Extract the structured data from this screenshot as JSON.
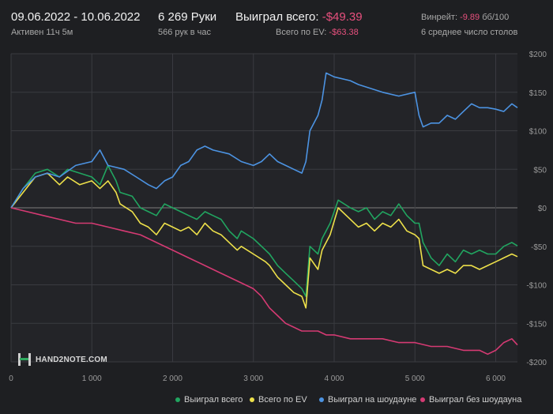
{
  "header": {
    "date_range": "09.06.2022 - 10.06.2022",
    "active": "Активен 11ч 5м",
    "hands": "6 269 Руки",
    "hands_rate": "566 рук в час",
    "won_label": "Выиграл всего:",
    "won_value": "-$49.39",
    "ev_label": "Всего по EV:",
    "ev_value": "-$63.38",
    "winrate_label": "Винрейт:",
    "winrate_value": "-9.89",
    "winrate_unit": "бб/100",
    "tables": "6 среднее число столов"
  },
  "logo": {
    "text": "HAND2NOTE.COM"
  },
  "colors": {
    "background": "#1e1f22",
    "plot_bg": "#232428",
    "grid": "#3a3b40",
    "zero_line": "#7c7c7c",
    "negative_value": "#e8507e"
  },
  "chart_data": {
    "type": "line",
    "x_range": [
      0,
      6269
    ],
    "x_ticks": [
      0,
      1000,
      2000,
      3000,
      4000,
      5000,
      6000
    ],
    "x_tick_labels": [
      "0",
      "1 000",
      "2 000",
      "3 000",
      "4 000",
      "5 000",
      "6 000"
    ],
    "ylim": [
      -200,
      200
    ],
    "y_ticks": [
      200,
      150,
      100,
      50,
      0,
      -50,
      -100,
      -150,
      -200
    ],
    "y_tick_labels": [
      "$200",
      "$150",
      "$100",
      "$50",
      "$0",
      "-$50",
      "-$100",
      "-$150",
      "-$200"
    ],
    "grid": true,
    "legend": "bottom-right",
    "series": [
      {
        "name": "Выиграл всего",
        "color": "#21a560",
        "x": [
          0,
          150,
          300,
          450,
          600,
          700,
          850,
          1000,
          1100,
          1200,
          1300,
          1350,
          1500,
          1600,
          1700,
          1800,
          1900,
          2000,
          2100,
          2200,
          2300,
          2400,
          2500,
          2600,
          2700,
          2800,
          2850,
          3000,
          3150,
          3200,
          3300,
          3400,
          3500,
          3600,
          3650,
          3700,
          3800,
          3850,
          3950,
          4050,
          4200,
          4300,
          4400,
          4500,
          4600,
          4700,
          4800,
          4900,
          5000,
          5050,
          5100,
          5200,
          5300,
          5400,
          5500,
          5600,
          5700,
          5800,
          5900,
          6000,
          6100,
          6200,
          6269
        ],
        "values": [
          0,
          25,
          45,
          50,
          40,
          50,
          45,
          40,
          30,
          55,
          35,
          20,
          15,
          0,
          -5,
          -10,
          5,
          0,
          -5,
          -10,
          -15,
          -5,
          -10,
          -15,
          -30,
          -40,
          -30,
          -40,
          -55,
          -60,
          -75,
          -85,
          -95,
          -105,
          -115,
          -50,
          -60,
          -40,
          -20,
          10,
          0,
          -5,
          0,
          -15,
          -5,
          -10,
          5,
          -10,
          -20,
          -20,
          -45,
          -65,
          -75,
          -60,
          -70,
          -55,
          -60,
          -55,
          -60,
          -60,
          -50,
          -45,
          -49.39
        ]
      },
      {
        "name": "Всего по EV",
        "color": "#ede04a",
        "x": [
          0,
          150,
          300,
          450,
          600,
          700,
          850,
          1000,
          1100,
          1200,
          1300,
          1350,
          1500,
          1600,
          1700,
          1800,
          1900,
          2000,
          2100,
          2200,
          2300,
          2400,
          2500,
          2600,
          2700,
          2800,
          2850,
          3000,
          3150,
          3200,
          3300,
          3400,
          3500,
          3600,
          3650,
          3700,
          3800,
          3850,
          3950,
          4050,
          4200,
          4300,
          4400,
          4500,
          4600,
          4700,
          4800,
          4900,
          5000,
          5050,
          5100,
          5200,
          5300,
          5400,
          5500,
          5600,
          5700,
          5800,
          5900,
          6000,
          6100,
          6200,
          6269
        ],
        "values": [
          0,
          20,
          40,
          45,
          30,
          40,
          30,
          35,
          25,
          35,
          20,
          5,
          -5,
          -20,
          -25,
          -35,
          -20,
          -25,
          -30,
          -25,
          -35,
          -20,
          -30,
          -35,
          -45,
          -55,
          -50,
          -60,
          -70,
          -75,
          -90,
          -100,
          -110,
          -115,
          -130,
          -65,
          -80,
          -55,
          -35,
          0,
          -15,
          -25,
          -20,
          -30,
          -20,
          -25,
          -15,
          -30,
          -35,
          -40,
          -75,
          -80,
          -85,
          -80,
          -85,
          -75,
          -75,
          -80,
          -75,
          -70,
          -65,
          -60,
          -63.38
        ]
      },
      {
        "name": "Выиграл на шоудауне",
        "color": "#4c93e2",
        "x": [
          0,
          150,
          300,
          450,
          600,
          800,
          1000,
          1100,
          1150,
          1200,
          1400,
          1550,
          1700,
          1800,
          1900,
          2000,
          2100,
          2200,
          2300,
          2400,
          2500,
          2700,
          2850,
          3000,
          3100,
          3200,
          3300,
          3400,
          3500,
          3600,
          3650,
          3700,
          3800,
          3850,
          3900,
          4000,
          4200,
          4300,
          4450,
          4600,
          4800,
          5000,
          5050,
          5100,
          5200,
          5300,
          5400,
          5500,
          5600,
          5700,
          5800,
          5900,
          6000,
          6100,
          6200,
          6269
        ],
        "values": [
          0,
          25,
          40,
          45,
          40,
          55,
          60,
          75,
          65,
          55,
          50,
          40,
          30,
          25,
          35,
          40,
          55,
          60,
          75,
          80,
          75,
          70,
          60,
          55,
          60,
          70,
          60,
          55,
          50,
          45,
          60,
          100,
          120,
          140,
          175,
          170,
          165,
          160,
          155,
          150,
          145,
          150,
          120,
          105,
          110,
          110,
          120,
          115,
          125,
          135,
          130,
          130,
          128,
          125,
          135,
          130
        ]
      },
      {
        "name": "Выиграл без шоудауна",
        "color": "#d53a73",
        "x": [
          0,
          200,
          400,
          600,
          800,
          1000,
          1200,
          1400,
          1600,
          1800,
          2000,
          2200,
          2400,
          2600,
          2800,
          3000,
          3100,
          3200,
          3300,
          3400,
          3500,
          3600,
          3700,
          3800,
          3900,
          4000,
          4200,
          4400,
          4600,
          4800,
          5000,
          5200,
          5400,
          5600,
          5800,
          5900,
          6000,
          6100,
          6200,
          6269
        ],
        "values": [
          0,
          -5,
          -10,
          -15,
          -20,
          -20,
          -25,
          -30,
          -35,
          -45,
          -55,
          -65,
          -75,
          -85,
          -95,
          -105,
          -115,
          -130,
          -140,
          -150,
          -155,
          -160,
          -160,
          -160,
          -165,
          -165,
          -170,
          -170,
          -170,
          -175,
          -175,
          -180,
          -180,
          -185,
          -185,
          -190,
          -185,
          -175,
          -170,
          -178
        ]
      }
    ]
  }
}
